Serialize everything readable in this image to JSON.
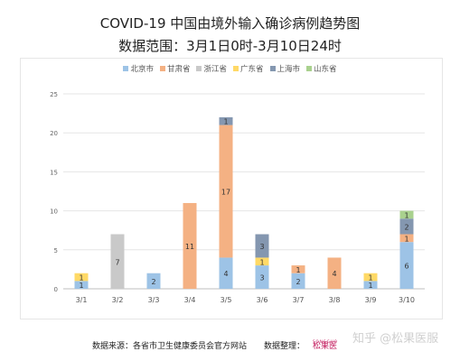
{
  "header": {
    "title": "COVID-19 中国由境外输入确诊病例趋势图",
    "subtitle": "数据范围：3月1日0时-3月10日24时"
  },
  "footer": {
    "source": "数据来源：各省市卫生健康委员会官方网站",
    "organizer": "数据整理：",
    "logo_text": "松果医",
    "logo_sub": "SONGGUO",
    "watermark": "知乎 @松果医服"
  },
  "chart_data": {
    "type": "bar",
    "stacked": true,
    "categories": [
      "3/1",
      "3/2",
      "3/3",
      "3/4",
      "3/5",
      "3/6",
      "3/7",
      "3/8",
      "3/9",
      "3/10"
    ],
    "series": [
      {
        "name": "北京市",
        "color": "#9dc3e6",
        "values": [
          1,
          0,
          2,
          0,
          4,
          3,
          2,
          0,
          1,
          6
        ]
      },
      {
        "name": "甘肃省",
        "color": "#f4b183",
        "values": [
          0,
          0,
          0,
          11,
          17,
          0,
          1,
          4,
          0,
          1
        ]
      },
      {
        "name": "浙江省",
        "color": "#c9c9c9",
        "values": [
          0,
          7,
          0,
          0,
          0,
          0,
          0,
          0,
          0,
          0
        ]
      },
      {
        "name": "广东省",
        "color": "#ffd966",
        "values": [
          1,
          0,
          0,
          0,
          0,
          1,
          0,
          0,
          1,
          0
        ]
      },
      {
        "name": "上海市",
        "color": "#8497b0",
        "values": [
          0,
          0,
          0,
          0,
          1,
          3,
          0,
          0,
          0,
          2
        ]
      },
      {
        "name": "山东省",
        "color": "#a9d18e",
        "values": [
          0,
          0,
          0,
          0,
          0,
          0,
          0,
          0,
          0,
          1
        ]
      }
    ],
    "ylim": [
      0,
      25
    ],
    "yticks": [
      0,
      5,
      10,
      15,
      20,
      25
    ],
    "legend_position": "top",
    "grid": true
  }
}
